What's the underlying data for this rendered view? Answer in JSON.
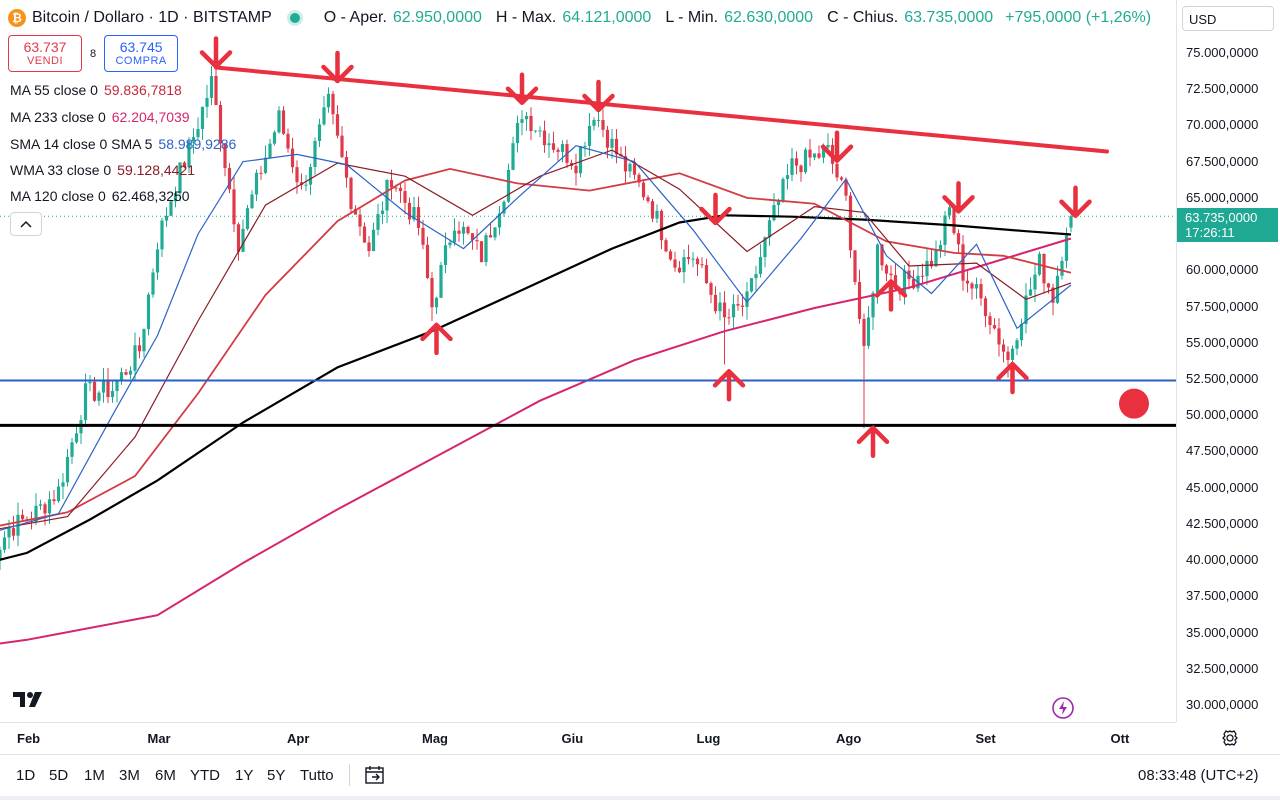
{
  "header": {
    "logo_glyph": "₿",
    "title": "Bitcoin / Dollaro · 1D · BITSTAMP",
    "ohlc": [
      {
        "key": "O - Aper.",
        "value": "62.950,0000"
      },
      {
        "key": "H - Max.",
        "value": "64.121,0000"
      },
      {
        "key": "L - Min.",
        "value": "62.630,0000"
      },
      {
        "key": "C - Chius.",
        "value": "63.735,0000"
      }
    ],
    "change": "+795,0000 (+1,26%)",
    "sell_price": "63.737",
    "sell_label": "VENDI",
    "spread": "8",
    "buy_price": "63.745",
    "buy_label": "COMPRA",
    "collapse_icon": "chevron-up-icon"
  },
  "indicators": [
    {
      "name": "MA 55 close 0",
      "value": "59.836,7818",
      "color": "#c2293a"
    },
    {
      "name": "MA 233 close 0",
      "value": "62.204,7039",
      "color": "#d6246e"
    },
    {
      "name": "SMA 14 close 0 SMA 5",
      "value": "58.989,9286",
      "color": "#2d63c8"
    },
    {
      "name": "WMA 33 close 0",
      "value": "59.128,4421",
      "color": "#8a1c26"
    },
    {
      "name": "MA 120 close 0",
      "value": "62.468,3250",
      "color": "#131722"
    }
  ],
  "axis": {
    "currency": "USD",
    "y_ticks": [
      "75.000,0000",
      "72.500,0000",
      "70.000,0000",
      "67.500,0000",
      "65.000,0000",
      "62.500,0000",
      "60.000,0000",
      "57.500,0000",
      "55.000,0000",
      "52.500,0000",
      "50.000,0000",
      "47.500,0000",
      "45.000,0000",
      "42.500,0000",
      "40.000,0000",
      "37.500,0000",
      "35.000,0000",
      "32.500,0000",
      "30.000,0000"
    ],
    "x_ticks": [
      "Feb",
      "Mar",
      "Apr",
      "Mag",
      "Giu",
      "Lug",
      "Ago",
      "Set",
      "Ott"
    ],
    "last_price": "63.735,0000",
    "countdown": "17:26:11"
  },
  "bottom": {
    "ranges": [
      "1D",
      "5D",
      "1M",
      "3M",
      "6M",
      "YTD",
      "1Y",
      "5Y",
      "Tutto"
    ],
    "time": "08:33:48 (UTC+2)"
  },
  "colors": {
    "up": "#22ab94",
    "down": "#e03a4a",
    "annotation": "#e8303f",
    "support_blue": "#2a5fc4",
    "support_black": "#000000"
  },
  "chart_data": {
    "type": "candlestick",
    "ylim": [
      29000,
      77000
    ],
    "x_range": [
      "2024-01-23",
      "2024-10-13"
    ],
    "last": {
      "open": 62950,
      "high": 64121,
      "low": 62630,
      "close": 63735
    },
    "ohlc_anchor_closes": [
      [
        "2024-01-23",
        39500
      ],
      [
        "2024-01-28",
        42200
      ],
      [
        "2024-02-02",
        43000
      ],
      [
        "2024-02-08",
        44800
      ],
      [
        "2024-02-14",
        51500
      ],
      [
        "2024-02-20",
        51800
      ],
      [
        "2024-02-26",
        54500
      ],
      [
        "2024-03-01",
        62000
      ],
      [
        "2024-03-05",
        66000
      ],
      [
        "2024-03-08",
        68300
      ],
      [
        "2024-03-13",
        73000
      ],
      [
        "2024-03-19",
        62000
      ],
      [
        "2024-03-24",
        67000
      ],
      [
        "2024-03-28",
        70500
      ],
      [
        "2024-04-02",
        65500
      ],
      [
        "2024-04-08",
        71500
      ],
      [
        "2024-04-13",
        65000
      ],
      [
        "2024-04-17",
        61500
      ],
      [
        "2024-04-22",
        66500
      ],
      [
        "2024-04-28",
        63000
      ],
      [
        "2024-05-01",
        57500
      ],
      [
        "2024-05-06",
        63500
      ],
      [
        "2024-05-12",
        61000
      ],
      [
        "2024-05-17",
        65500
      ],
      [
        "2024-05-21",
        71000
      ],
      [
        "2024-05-27",
        69000
      ],
      [
        "2024-06-02",
        67500
      ],
      [
        "2024-06-06",
        71000
      ],
      [
        "2024-06-12",
        67500
      ],
      [
        "2024-06-18",
        65000
      ],
      [
        "2024-06-24",
        60500
      ],
      [
        "2024-06-28",
        61000
      ],
      [
        "2024-07-05",
        56500
      ],
      [
        "2024-07-10",
        57800
      ],
      [
        "2024-07-15",
        63000
      ],
      [
        "2024-07-20",
        67200
      ],
      [
        "2024-07-28",
        68200
      ],
      [
        "2024-08-01",
        64800
      ],
      [
        "2024-08-05",
        54000
      ],
      [
        "2024-08-08",
        61500
      ],
      [
        "2024-08-12",
        59000
      ],
      [
        "2024-08-16",
        59500
      ],
      [
        "2024-08-21",
        61000
      ],
      [
        "2024-08-24",
        64200
      ],
      [
        "2024-08-27",
        59800
      ],
      [
        "2024-09-01",
        57500
      ],
      [
        "2024-09-06",
        53800
      ],
      [
        "2024-09-09",
        57000
      ],
      [
        "2024-09-13",
        60500
      ],
      [
        "2024-09-16",
        58200
      ],
      [
        "2024-09-19",
        63000
      ],
      [
        "2024-09-20",
        63735
      ]
    ],
    "series": [
      {
        "name": "MA 55 close 0",
        "last": 59836.7818
      },
      {
        "name": "MA 233 close 0",
        "last": 62204.7039
      },
      {
        "name": "SMA 14 close 0 SMA 5",
        "last": 58989.9286
      },
      {
        "name": "WMA 33 close 0",
        "last": 59128.4421
      },
      {
        "name": "MA 120 close 0",
        "last": 62468.325
      }
    ],
    "annotations": {
      "resistance_line": [
        [
          "2024-03-14",
          74000
        ],
        [
          "2024-09-28",
          68200
        ]
      ],
      "support_blue": 52400,
      "support_black": 49300,
      "down_arrows": [
        [
          "2024-03-14",
          76000
        ],
        [
          "2024-04-10",
          75000
        ],
        [
          "2024-05-21",
          73500
        ],
        [
          "2024-06-07",
          73000
        ],
        [
          "2024-07-03",
          65200
        ],
        [
          "2024-07-30",
          69500
        ],
        [
          "2024-08-26",
          66000
        ],
        [
          "2024-09-21",
          65700
        ]
      ],
      "up_arrows": [
        [
          "2024-05-02",
          54300
        ],
        [
          "2024-07-06",
          51100
        ],
        [
          "2024-08-07",
          47200
        ],
        [
          "2024-08-11",
          57300
        ],
        [
          "2024-09-07",
          51600
        ]
      ],
      "dot": [
        "2024-10-04",
        50800
      ]
    }
  }
}
